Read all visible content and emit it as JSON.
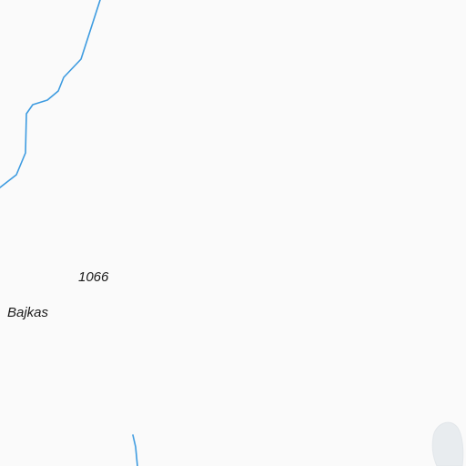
{
  "map": {
    "background_color": "#fafafa",
    "water_color": "#3d9be0",
    "lake_color": "#e8ecef",
    "labels": {
      "elevation": "1066",
      "place": "Bajkas"
    },
    "features": [
      "river",
      "stream",
      "lake"
    ]
  }
}
